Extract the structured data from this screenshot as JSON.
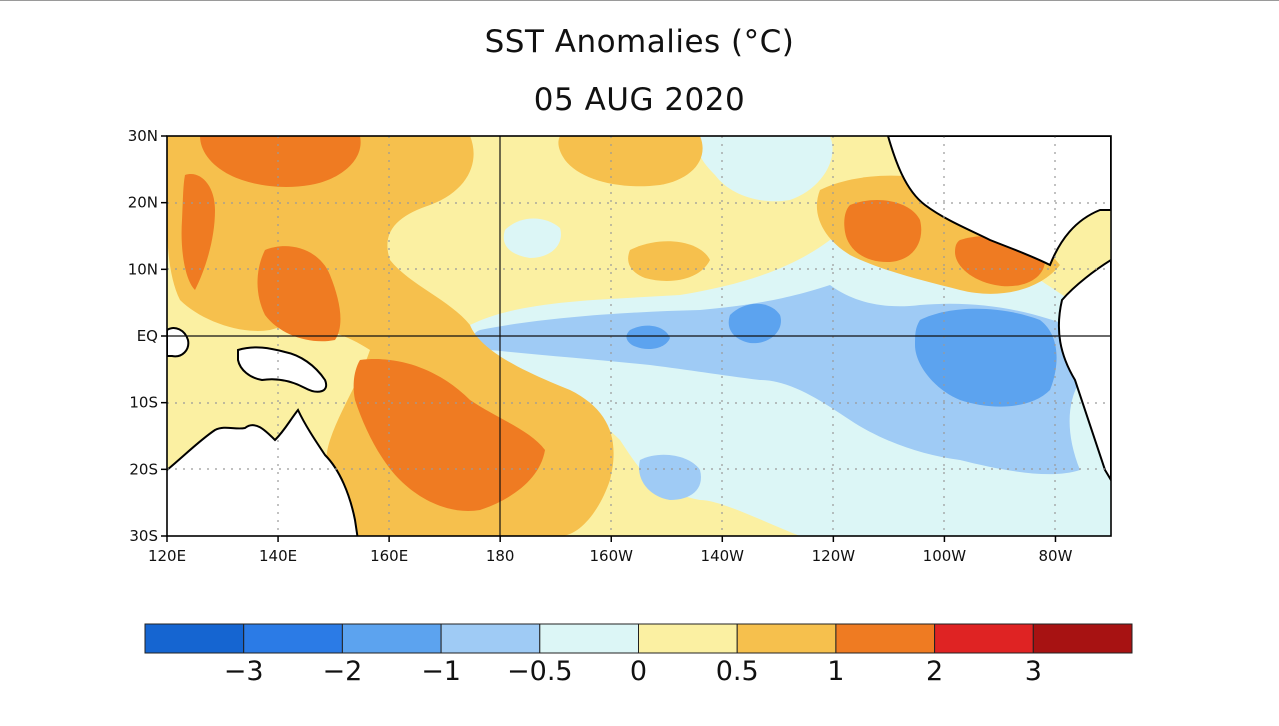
{
  "title": "SST Anomalies (°C)",
  "subtitle": "05 AUG 2020",
  "map": {
    "projection": "equirectangular",
    "lon_range": [
      120,
      290
    ],
    "lat_range": [
      -30,
      30
    ],
    "lat_ticks": [
      {
        "value": 30,
        "label": "30N"
      },
      {
        "value": 20,
        "label": "20N"
      },
      {
        "value": 10,
        "label": "10N"
      },
      {
        "value": 0,
        "label": "EQ"
      },
      {
        "value": -10,
        "label": "10S"
      },
      {
        "value": -20,
        "label": "20S"
      },
      {
        "value": -30,
        "label": "30S"
      }
    ],
    "lon_ticks": [
      {
        "value": 120,
        "label": "120E"
      },
      {
        "value": 140,
        "label": "140E"
      },
      {
        "value": 160,
        "label": "160E"
      },
      {
        "value": 180,
        "label": "180"
      },
      {
        "value": 200,
        "label": "160W"
      },
      {
        "value": 220,
        "label": "140W"
      },
      {
        "value": 240,
        "label": "120W"
      },
      {
        "value": 260,
        "label": "100W"
      },
      {
        "value": 280,
        "label": "80W"
      }
    ],
    "grid": "dotted",
    "reference_lines": {
      "equator": true,
      "dateline": true
    },
    "land_color": "#ffffff"
  },
  "colorbar": {
    "boundary_labels": [
      "−3",
      "−2",
      "−1",
      "−0.5",
      "0",
      "0.5",
      "1",
      "2",
      "3"
    ],
    "colors": [
      "#1565d1",
      "#2b7be6",
      "#5ca3ef",
      "#9fcbf5",
      "#dcf6f6",
      "#fbf0a2",
      "#f6c04d",
      "#ef7b22",
      "#df2323",
      "#a71212"
    ]
  },
  "anomaly_regions": [
    {
      "level": "pos_0_0.5",
      "color": "#fbf0a2",
      "desc": "broad warm background"
    },
    {
      "level": "neg_0_0.5",
      "color": "#dcf6f6",
      "desc": "eastern / central Pacific cool background"
    },
    {
      "level": "neg_0.5_1",
      "color": "#9fcbf5",
      "desc": "equatorial cold tongue"
    },
    {
      "level": "neg_1_2",
      "color": "#5ca3ef",
      "desc": "cold cores near equator"
    },
    {
      "level": "pos_0.5_1",
      "color": "#f6c04d",
      "desc": "western Pacific warm"
    },
    {
      "level": "pos_1_2",
      "color": "#ef7b22",
      "desc": "strong warm anomalies"
    }
  ]
}
